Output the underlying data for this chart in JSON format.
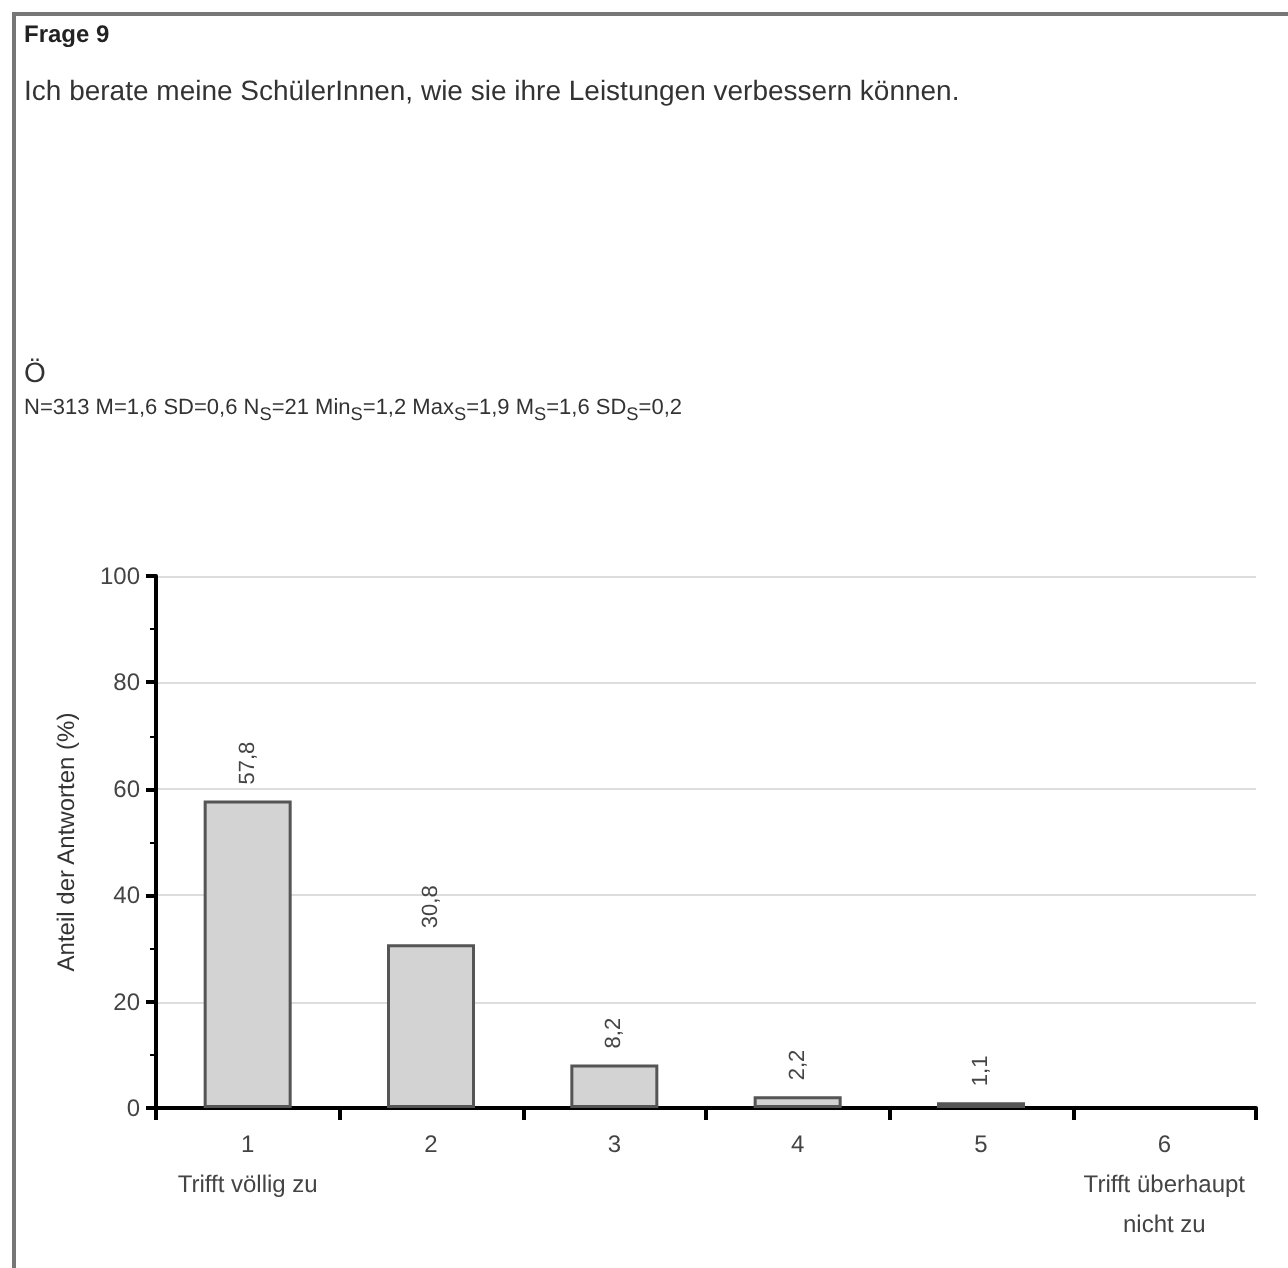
{
  "chart_data": {
    "type": "bar",
    "title": "Frage 9",
    "subtitle": "Ich berate meine SchülerInnen, wie sie ihre Leistungen verbessern können.",
    "annotations": [
      "Ö",
      "N=313 M=1,6 SD=0,6 N$_{S}$=21 Min$_{S}$=1,2 Max$_{S}$=1,9 M$_{S}$=1,6 SD$_{S}$=0,2"
    ],
    "ylabel": "Anteil der Antworten (%)",
    "categories": [
      "1\nTrifft völlig zu",
      "2",
      "3",
      "4",
      "5",
      "6\nTrifft überhaupt\nnicht zu"
    ],
    "values": [
      57.8,
      30.8,
      8.2,
      2.2,
      1.1,
      null
    ],
    "value_labels": [
      "57,8",
      "30,8",
      "8,2",
      "2,2",
      "1,1",
      null
    ],
    "color": "#d3d3d3",
    "ylim": [
      0,
      100
    ],
    "yticks": [
      0,
      20,
      40,
      60,
      80,
      100
    ],
    "grid": "y"
  }
}
